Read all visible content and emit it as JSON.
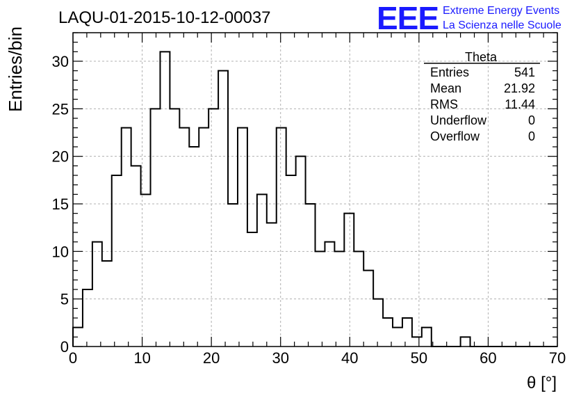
{
  "header": {
    "run_title": "LAQU-01-2015-10-12-00037",
    "logo_text": "EEE",
    "logo_line1": "Extreme Energy Events",
    "logo_line2": "La Scienza nelle Scuole",
    "logo_color": "#1a1aff"
  },
  "stats_box": {
    "title": "Theta",
    "rows": [
      {
        "label": "Entries",
        "value": "541"
      },
      {
        "label": "Mean",
        "value": "21.92"
      },
      {
        "label": "RMS",
        "value": "11.44"
      },
      {
        "label": "Underflow",
        "value": "0"
      },
      {
        "label": "Overflow",
        "value": "0"
      }
    ]
  },
  "chart_data": {
    "type": "bar",
    "subtype": "step-histogram",
    "title": "LAQU-01-2015-10-12-00037",
    "xlabel": "θ [°]",
    "ylabel": "Entries/bin",
    "xlim": [
      0,
      70
    ],
    "ylim": [
      0,
      33
    ],
    "bin_width": 1.4,
    "bin_edges_start": 0,
    "grid": true,
    "x_ticks": [
      0,
      10,
      20,
      30,
      40,
      50,
      60,
      70
    ],
    "y_ticks": [
      0,
      5,
      10,
      15,
      20,
      25,
      30
    ],
    "values": [
      2,
      6,
      11,
      9,
      18,
      23,
      19,
      16,
      25,
      31,
      25,
      23,
      21,
      23,
      25,
      29,
      15,
      23,
      12,
      16,
      13,
      23,
      18,
      20,
      15,
      10,
      11,
      10,
      14,
      10,
      8,
      5,
      3,
      2,
      3,
      1,
      2,
      0,
      0,
      0,
      1,
      0,
      0,
      0,
      0,
      0,
      0,
      0,
      0,
      0
    ],
    "line_color": "#000000"
  }
}
